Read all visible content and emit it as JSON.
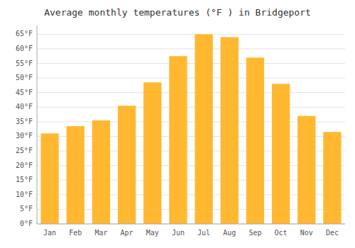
{
  "chart_data": {
    "type": "bar",
    "title": "Average monthly temperatures (°F ) in Bridgeport",
    "categories": [
      "Jan",
      "Feb",
      "Mar",
      "Apr",
      "May",
      "Jun",
      "Jul",
      "Aug",
      "Sep",
      "Oct",
      "Nov",
      "Dec"
    ],
    "values": [
      31,
      33.5,
      35.5,
      40.5,
      48.5,
      57.5,
      65,
      64,
      57,
      48,
      37,
      31.5
    ],
    "color": "#FFB830",
    "ylim": [
      0,
      68
    ],
    "yticks": [
      {
        "value": 0,
        "label": "0°F"
      },
      {
        "value": 5,
        "label": "5°F"
      },
      {
        "value": 10,
        "label": "10°F"
      },
      {
        "value": 15,
        "label": "15°F"
      },
      {
        "value": 20,
        "label": "20°F"
      },
      {
        "value": 25,
        "label": "25°F"
      },
      {
        "value": 30,
        "label": "30°F"
      },
      {
        "value": 35,
        "label": "35°F"
      },
      {
        "value": 40,
        "label": "40°F"
      },
      {
        "value": 45,
        "label": "45°F"
      },
      {
        "value": 50,
        "label": "50°F"
      },
      {
        "value": 55,
        "label": "55°F"
      },
      {
        "value": 60,
        "label": "60°F"
      },
      {
        "value": 65,
        "label": "65°F"
      }
    ],
    "grid": true
  }
}
